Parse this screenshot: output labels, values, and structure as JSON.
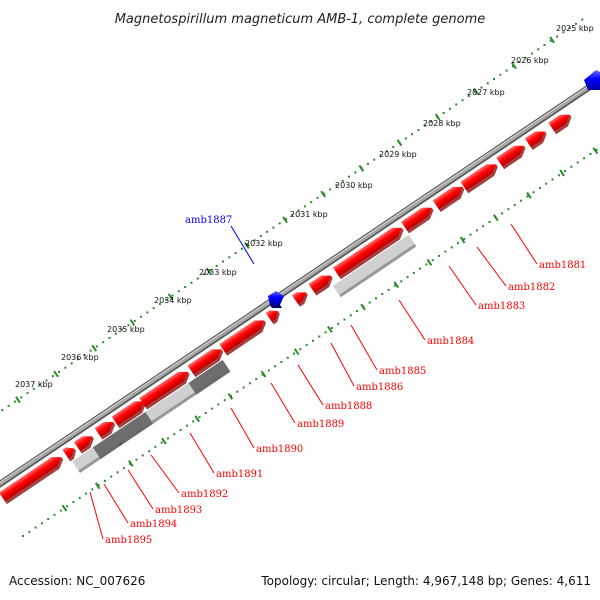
{
  "title": "Magnetospirillum magneticum AMB-1, complete genome",
  "accession": "Accession: NC_007626",
  "summary": "Topology: circular; Length: 4,967,148 bp; Genes: 4,611",
  "colors": {
    "forward_gene": "#ff0000",
    "reverse_gene": "#0000ff",
    "backbone": "#888888",
    "tick": "#2a8a2a",
    "pseudogene_light": "#d0d0d0",
    "pseudogene_dark": "#6e6e6e"
  },
  "kbp_ticks": [
    "2025 kbp",
    "2026 kbp",
    "2027 kbp",
    "2028 kbp",
    "2029 kbp",
    "2030 kbp",
    "2031 kbp",
    "2032 kbp",
    "2033 kbp",
    "2034 kbp",
    "2035 kbp",
    "2036 kbp",
    "2037 kbp"
  ],
  "genes": [
    {
      "id": "amb1881",
      "strand": "minus"
    },
    {
      "id": "amb1882",
      "strand": "minus"
    },
    {
      "id": "amb1883",
      "strand": "minus"
    },
    {
      "id": "amb1884",
      "strand": "minus"
    },
    {
      "id": "amb1885",
      "strand": "minus"
    },
    {
      "id": "amb1886",
      "strand": "minus"
    },
    {
      "id": "amb1887",
      "strand": "plus"
    },
    {
      "id": "amb1888",
      "strand": "minus"
    },
    {
      "id": "amb1889",
      "strand": "minus"
    },
    {
      "id": "amb1890",
      "strand": "minus"
    },
    {
      "id": "amb1891",
      "strand": "minus"
    },
    {
      "id": "amb1892",
      "strand": "minus"
    },
    {
      "id": "amb1893",
      "strand": "minus"
    },
    {
      "id": "amb1894",
      "strand": "minus"
    },
    {
      "id": "amb1895",
      "strand": "minus"
    }
  ]
}
